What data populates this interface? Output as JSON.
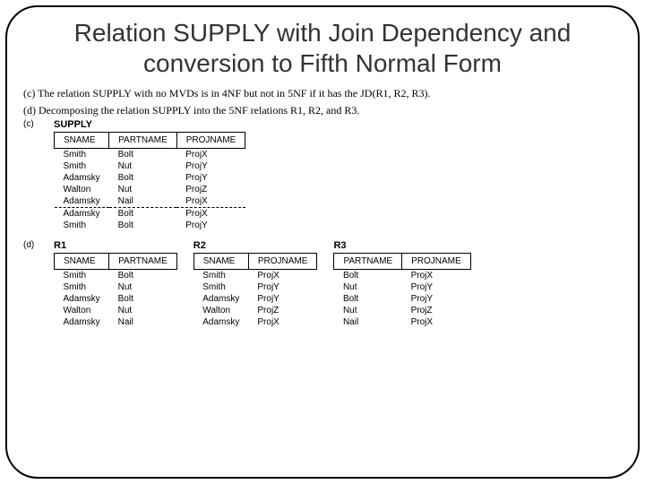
{
  "title": "Relation SUPPLY with Join Dependency and conversion to Fifth Normal Form",
  "caption_c": "(c) The relation SUPPLY with no MVDs is in 4NF but not in 5NF if it has the JD(R1, R2, R3).",
  "caption_d": "(d) Decomposing the relation SUPPLY into the 5NF relations R1, R2, and R3.",
  "label_c": "(c)",
  "label_d": "(d)",
  "supply": {
    "name": "SUPPLY",
    "headers": [
      "SNAME",
      "PARTNAME",
      "PROJNAME"
    ],
    "rows_top": [
      [
        "Smith",
        "Bolt",
        "ProjX"
      ],
      [
        "Smith",
        "Nut",
        "ProjY"
      ],
      [
        "Adamsky",
        "Bolt",
        "ProjY"
      ],
      [
        "Walton",
        "Nut",
        "ProjZ"
      ],
      [
        "Adamsky",
        "Nail",
        "ProjX"
      ]
    ],
    "rows_bottom": [
      [
        "Adamsky",
        "Bolt",
        "ProjX"
      ],
      [
        "Smith",
        "Bolt",
        "ProjY"
      ]
    ]
  },
  "r1": {
    "name": "R1",
    "headers": [
      "SNAME",
      "PARTNAME"
    ],
    "rows": [
      [
        "Smith",
        "Bolt"
      ],
      [
        "Smith",
        "Nut"
      ],
      [
        "Adamsky",
        "Bolt"
      ],
      [
        "Walton",
        "Nut"
      ],
      [
        "Adamsky",
        "Nail"
      ]
    ]
  },
  "r2": {
    "name": "R2",
    "headers": [
      "SNAME",
      "PROJNAME"
    ],
    "rows": [
      [
        "Smith",
        "ProjX"
      ],
      [
        "Smith",
        "ProjY"
      ],
      [
        "Adamsky",
        "ProjY"
      ],
      [
        "Walton",
        "ProjZ"
      ],
      [
        "Adamsky",
        "ProjX"
      ]
    ]
  },
  "r3": {
    "name": "R3",
    "headers": [
      "PARTNAME",
      "PROJNAME"
    ],
    "rows": [
      [
        "Bolt",
        "ProjX"
      ],
      [
        "Nut",
        "ProjY"
      ],
      [
        "Bolt",
        "ProjY"
      ],
      [
        "Nut",
        "ProjZ"
      ],
      [
        "Nail",
        "ProjX"
      ]
    ]
  }
}
